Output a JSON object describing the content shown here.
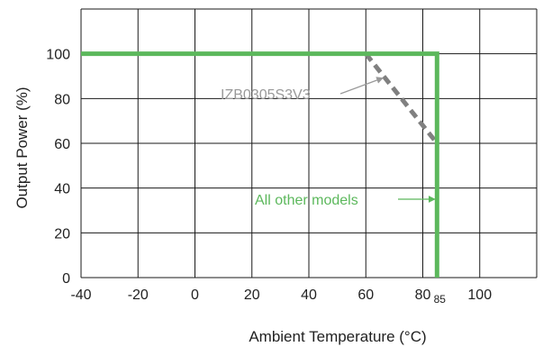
{
  "chart_data": {
    "type": "line",
    "title": "",
    "xlabel": "Ambient Temperature (°C)",
    "ylabel": "Output Power (%)",
    "xlim": [
      -40,
      120
    ],
    "ylim": [
      0,
      120
    ],
    "x_ticks": [
      -40,
      -20,
      0,
      20,
      40,
      60,
      80,
      100
    ],
    "x_tick_labels": [
      "-40",
      "-20",
      "0",
      "20",
      "40",
      "60",
      "80",
      "100"
    ],
    "y_ticks": [
      0,
      20,
      40,
      60,
      80,
      100
    ],
    "y_tick_labels": [
      "0",
      "20",
      "40",
      "60",
      "80",
      "100"
    ],
    "extra_x_tick": {
      "value": 85,
      "label": "85"
    },
    "grid": true,
    "series": [
      {
        "name": "All other models",
        "color": "#5cb85c",
        "style": "solid",
        "x": [
          -40,
          85,
          85,
          85
        ],
        "y": [
          100,
          100,
          60,
          0
        ]
      },
      {
        "name": "IZB0305S3V3",
        "color": "#808080",
        "style": "dashed",
        "x": [
          60,
          85
        ],
        "y": [
          100,
          60
        ]
      }
    ],
    "annotations": [
      {
        "text": "IZB0305S3V3",
        "color": "#999999",
        "arrow_to": [
          66,
          90
        ]
      },
      {
        "text": "All other models",
        "color": "#5cb85c",
        "arrow_to": [
          83,
          40
        ]
      }
    ]
  }
}
